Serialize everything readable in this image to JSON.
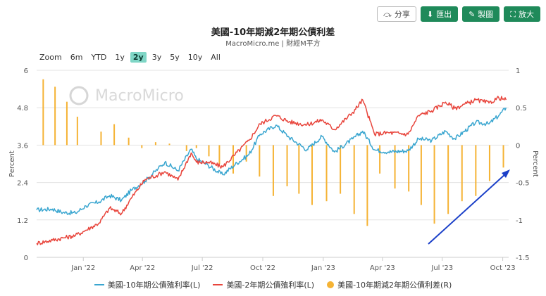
{
  "toolbar": {
    "share_label": "分享",
    "export_label": "匯出",
    "draw_label": "製圖",
    "zoom_label": "放大",
    "colors": {
      "share_border": "#bbbbbb",
      "green": "#1f8a5a"
    }
  },
  "ranges": [
    {
      "label": "Zoom",
      "active": false
    },
    {
      "label": "6m",
      "active": false
    },
    {
      "label": "YTD",
      "active": false
    },
    {
      "label": "1y",
      "active": false
    },
    {
      "label": "2y",
      "active": true
    },
    {
      "label": "3y",
      "active": false
    },
    {
      "label": "5y",
      "active": false
    },
    {
      "label": "10y",
      "active": false
    },
    {
      "label": "All",
      "active": false
    }
  ],
  "watermark": "MacroMicro",
  "chart_data": {
    "type": "line",
    "title": "美國-10年期減2年期公債利差",
    "subtitle": "MacroMicro.me | 財經M平方",
    "ylabel_left": "Percent",
    "ylabel_right": "Percent",
    "left_axis": {
      "range": [
        0,
        6
      ],
      "ticks": [
        "0",
        "1.2",
        "2.4",
        "3.6",
        "4.8",
        "6"
      ]
    },
    "right_axis": {
      "range": [
        -1.5,
        1
      ],
      "ticks": [
        "-1.5",
        "-1",
        "-0.5",
        "0",
        "0.5",
        "1"
      ]
    },
    "x_axis": {
      "range": [
        "2021-10-22",
        "2023-10-10"
      ],
      "ticks": [
        {
          "label": "Jan '22",
          "date": "2022-01-01"
        },
        {
          "label": "Apr '22",
          "date": "2022-04-01"
        },
        {
          "label": "Jul '22",
          "date": "2022-07-01"
        },
        {
          "label": "Oct '22",
          "date": "2022-10-01"
        },
        {
          "label": "Jan '23",
          "date": "2023-01-01"
        },
        {
          "label": "Apr '23",
          "date": "2023-04-01"
        },
        {
          "label": "Jul '23",
          "date": "2023-07-01"
        },
        {
          "label": "Oct '23",
          "date": "2023-10-01"
        }
      ]
    },
    "grid": true,
    "legend_placement": "bottom",
    "series": [
      {
        "name": "美國-10年期公債殖利率(L)",
        "axis": "left",
        "color": "#3aa6d0",
        "points": [
          [
            "2021-10-22",
            1.52
          ],
          [
            "2021-11-15",
            1.55
          ],
          [
            "2021-12-01",
            1.44
          ],
          [
            "2021-12-20",
            1.42
          ],
          [
            "2022-01-05",
            1.65
          ],
          [
            "2022-01-25",
            1.78
          ],
          [
            "2022-02-10",
            1.98
          ],
          [
            "2022-02-28",
            1.83
          ],
          [
            "2022-03-15",
            2.15
          ],
          [
            "2022-04-05",
            2.45
          ],
          [
            "2022-04-25",
            2.85
          ],
          [
            "2022-05-05",
            3.05
          ],
          [
            "2022-05-25",
            2.78
          ],
          [
            "2022-06-14",
            3.47
          ],
          [
            "2022-06-22",
            3.16
          ],
          [
            "2022-07-10",
            2.95
          ],
          [
            "2022-08-01",
            2.65
          ],
          [
            "2022-08-20",
            2.98
          ],
          [
            "2022-09-10",
            3.3
          ],
          [
            "2022-09-27",
            3.95
          ],
          [
            "2022-10-21",
            4.24
          ],
          [
            "2022-11-10",
            3.85
          ],
          [
            "2022-12-07",
            3.45
          ],
          [
            "2022-12-30",
            3.88
          ],
          [
            "2023-01-18",
            3.38
          ],
          [
            "2023-02-15",
            3.8
          ],
          [
            "2023-03-02",
            4.05
          ],
          [
            "2023-03-20",
            3.45
          ],
          [
            "2023-04-10",
            3.38
          ],
          [
            "2023-05-10",
            3.42
          ],
          [
            "2023-05-26",
            3.8
          ],
          [
            "2023-06-15",
            3.75
          ],
          [
            "2023-07-06",
            4.05
          ],
          [
            "2023-07-20",
            3.8
          ],
          [
            "2023-08-21",
            4.33
          ],
          [
            "2023-09-10",
            4.28
          ],
          [
            "2023-09-25",
            4.55
          ],
          [
            "2023-10-06",
            4.8
          ]
        ]
      },
      {
        "name": "美國-2年期公債殖利率(L)",
        "axis": "left",
        "color": "#e8453c",
        "points": [
          [
            "2021-10-22",
            0.45
          ],
          [
            "2021-11-15",
            0.55
          ],
          [
            "2021-12-01",
            0.62
          ],
          [
            "2021-12-20",
            0.7
          ],
          [
            "2022-01-05",
            0.87
          ],
          [
            "2022-01-25",
            1.1
          ],
          [
            "2022-02-10",
            1.58
          ],
          [
            "2022-02-28",
            1.4
          ],
          [
            "2022-03-15",
            1.9
          ],
          [
            "2022-04-05",
            2.5
          ],
          [
            "2022-04-25",
            2.65
          ],
          [
            "2022-05-05",
            2.75
          ],
          [
            "2022-05-25",
            2.48
          ],
          [
            "2022-06-14",
            3.35
          ],
          [
            "2022-06-22",
            3.05
          ],
          [
            "2022-07-10",
            3.05
          ],
          [
            "2022-08-01",
            2.9
          ],
          [
            "2022-08-20",
            3.3
          ],
          [
            "2022-09-10",
            3.75
          ],
          [
            "2022-09-27",
            4.28
          ],
          [
            "2022-10-21",
            4.55
          ],
          [
            "2022-11-10",
            4.35
          ],
          [
            "2022-12-07",
            4.25
          ],
          [
            "2022-12-30",
            4.41
          ],
          [
            "2023-01-18",
            4.1
          ],
          [
            "2023-02-15",
            4.65
          ],
          [
            "2023-03-02",
            5.05
          ],
          [
            "2023-03-20",
            3.95
          ],
          [
            "2023-04-10",
            4.0
          ],
          [
            "2023-05-10",
            3.95
          ],
          [
            "2023-05-26",
            4.55
          ],
          [
            "2023-06-15",
            4.7
          ],
          [
            "2023-07-06",
            4.98
          ],
          [
            "2023-07-20",
            4.78
          ],
          [
            "2023-08-21",
            5.05
          ],
          [
            "2023-09-10",
            4.95
          ],
          [
            "2023-09-25",
            5.12
          ],
          [
            "2023-10-06",
            5.05
          ]
        ]
      },
      {
        "name": "美國-10年期減2年期公債利差(R)",
        "axis": "right",
        "type": "bar",
        "color": "#f5b335",
        "points": [
          [
            "2021-11-01",
            0.88
          ],
          [
            "2021-11-19",
            0.78
          ],
          [
            "2021-12-07",
            0.58
          ],
          [
            "2021-12-23",
            0.38
          ],
          [
            "2022-01-28",
            0.18
          ],
          [
            "2022-02-17",
            0.28
          ],
          [
            "2022-03-11",
            0.1
          ],
          [
            "2022-03-31",
            -0.04
          ],
          [
            "2022-04-21",
            0.04
          ],
          [
            "2022-05-12",
            0.02
          ],
          [
            "2022-06-07",
            -0.08
          ],
          [
            "2022-06-22",
            -0.04
          ],
          [
            "2022-07-11",
            -0.15
          ],
          [
            "2022-07-27",
            -0.25
          ],
          [
            "2022-08-17",
            -0.38
          ],
          [
            "2022-09-06",
            -0.22
          ],
          [
            "2022-09-26",
            -0.42
          ],
          [
            "2022-10-17",
            -0.68
          ],
          [
            "2022-11-07",
            -0.55
          ],
          [
            "2022-11-25",
            -0.65
          ],
          [
            "2022-12-15",
            -0.8
          ],
          [
            "2023-01-06",
            -0.75
          ],
          [
            "2023-01-27",
            -0.65
          ],
          [
            "2023-02-17",
            -0.92
          ],
          [
            "2023-03-09",
            -1.08
          ],
          [
            "2023-03-28",
            -0.38
          ],
          [
            "2023-04-20",
            -0.58
          ],
          [
            "2023-05-11",
            -0.62
          ],
          [
            "2023-05-30",
            -0.8
          ],
          [
            "2023-06-19",
            -1.05
          ],
          [
            "2023-07-10",
            -0.92
          ],
          [
            "2023-07-31",
            -0.75
          ],
          [
            "2023-08-21",
            -0.68
          ],
          [
            "2023-09-11",
            -0.48
          ],
          [
            "2023-10-02",
            -0.3
          ]
        ]
      }
    ]
  },
  "annotation": {
    "type": "arrow",
    "color": "#1a3fc8"
  }
}
